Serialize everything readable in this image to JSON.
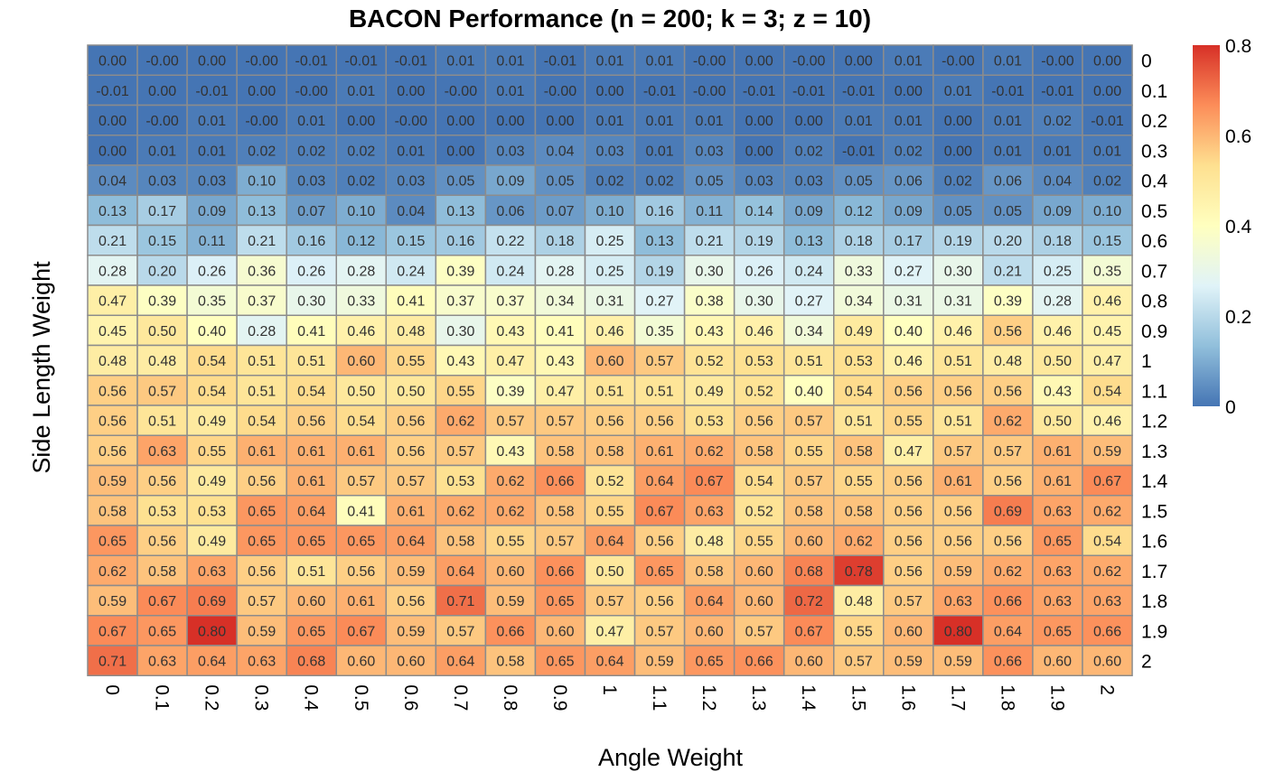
{
  "chart_data": {
    "type": "heatmap",
    "title": "BACON Performance (n = 200; k = 3; z = 10)",
    "xlabel": "Angle Weight",
    "ylabel": "Side Length Weight",
    "x": [
      "0",
      "0.1",
      "0.2",
      "0.3",
      "0.4",
      "0.5",
      "0.6",
      "0.7",
      "0.8",
      "0.9",
      "1",
      "1.1",
      "1.2",
      "1.3",
      "1.4",
      "1.5",
      "1.6",
      "1.7",
      "1.8",
      "1.9",
      "2"
    ],
    "y": [
      "0",
      "0.1",
      "0.2",
      "0.3",
      "0.4",
      "0.5",
      "0.6",
      "0.7",
      "0.8",
      "0.9",
      "1",
      "1.1",
      "1.2",
      "1.3",
      "1.4",
      "1.5",
      "1.6",
      "1.7",
      "1.8",
      "1.9",
      "2"
    ],
    "values": [
      [
        "0.00",
        "-0.00",
        "0.00",
        "-0.00",
        "-0.01",
        "-0.01",
        "-0.01",
        "0.01",
        "0.01",
        "-0.01",
        "0.01",
        "0.01",
        "-0.00",
        "0.00",
        "-0.00",
        "0.00",
        "0.01",
        "-0.00",
        "0.01",
        "-0.00",
        "0.00"
      ],
      [
        "-0.01",
        "0.00",
        "-0.01",
        "0.00",
        "-0.00",
        "0.01",
        "0.00",
        "-0.00",
        "0.01",
        "-0.00",
        "0.00",
        "-0.01",
        "-0.00",
        "-0.01",
        "-0.01",
        "-0.01",
        "0.00",
        "0.01",
        "-0.01",
        "-0.01",
        "0.00"
      ],
      [
        "0.00",
        "-0.00",
        "0.01",
        "-0.00",
        "0.01",
        "0.00",
        "-0.00",
        "0.00",
        "0.00",
        "0.00",
        "0.01",
        "0.01",
        "0.01",
        "0.00",
        "0.00",
        "0.01",
        "0.01",
        "0.00",
        "0.01",
        "0.02",
        "-0.01"
      ],
      [
        "0.00",
        "0.01",
        "0.01",
        "0.02",
        "0.02",
        "0.02",
        "0.01",
        "0.00",
        "0.03",
        "0.04",
        "0.03",
        "0.01",
        "0.03",
        "0.00",
        "0.02",
        "-0.01",
        "0.02",
        "0.00",
        "0.01",
        "0.01",
        "0.01"
      ],
      [
        "0.04",
        "0.03",
        "0.03",
        "0.10",
        "0.03",
        "0.02",
        "0.03",
        "0.05",
        "0.09",
        "0.05",
        "0.02",
        "0.02",
        "0.05",
        "0.03",
        "0.03",
        "0.05",
        "0.06",
        "0.02",
        "0.06",
        "0.04",
        "0.02"
      ],
      [
        "0.13",
        "0.17",
        "0.09",
        "0.13",
        "0.07",
        "0.10",
        "0.04",
        "0.13",
        "0.06",
        "0.07",
        "0.10",
        "0.16",
        "0.11",
        "0.14",
        "0.09",
        "0.12",
        "0.09",
        "0.05",
        "0.05",
        "0.09",
        "0.10"
      ],
      [
        "0.21",
        "0.15",
        "0.11",
        "0.21",
        "0.16",
        "0.12",
        "0.15",
        "0.16",
        "0.22",
        "0.18",
        "0.25",
        "0.13",
        "0.21",
        "0.19",
        "0.13",
        "0.18",
        "0.17",
        "0.19",
        "0.20",
        "0.18",
        "0.15"
      ],
      [
        "0.28",
        "0.20",
        "0.26",
        "0.36",
        "0.26",
        "0.28",
        "0.24",
        "0.39",
        "0.24",
        "0.28",
        "0.25",
        "0.19",
        "0.30",
        "0.26",
        "0.24",
        "0.33",
        "0.27",
        "0.30",
        "0.21",
        "0.25",
        "0.35"
      ],
      [
        "0.47",
        "0.39",
        "0.35",
        "0.37",
        "0.30",
        "0.33",
        "0.41",
        "0.37",
        "0.37",
        "0.34",
        "0.31",
        "0.27",
        "0.38",
        "0.30",
        "0.27",
        "0.34",
        "0.31",
        "0.31",
        "0.39",
        "0.28",
        "0.46"
      ],
      [
        "0.45",
        "0.50",
        "0.40",
        "0.28",
        "0.41",
        "0.46",
        "0.48",
        "0.30",
        "0.43",
        "0.41",
        "0.46",
        "0.35",
        "0.43",
        "0.46",
        "0.34",
        "0.49",
        "0.40",
        "0.46",
        "0.56",
        "0.46",
        "0.45"
      ],
      [
        "0.48",
        "0.48",
        "0.54",
        "0.51",
        "0.51",
        "0.60",
        "0.55",
        "0.43",
        "0.47",
        "0.43",
        "0.60",
        "0.57",
        "0.52",
        "0.53",
        "0.51",
        "0.53",
        "0.46",
        "0.51",
        "0.48",
        "0.50",
        "0.47"
      ],
      [
        "0.56",
        "0.57",
        "0.54",
        "0.51",
        "0.54",
        "0.50",
        "0.50",
        "0.55",
        "0.39",
        "0.47",
        "0.51",
        "0.51",
        "0.49",
        "0.52",
        "0.40",
        "0.54",
        "0.56",
        "0.56",
        "0.56",
        "0.43",
        "0.54"
      ],
      [
        "0.56",
        "0.51",
        "0.49",
        "0.54",
        "0.56",
        "0.54",
        "0.56",
        "0.62",
        "0.57",
        "0.57",
        "0.56",
        "0.56",
        "0.53",
        "0.56",
        "0.57",
        "0.51",
        "0.55",
        "0.51",
        "0.62",
        "0.50",
        "0.46"
      ],
      [
        "0.56",
        "0.63",
        "0.55",
        "0.61",
        "0.61",
        "0.61",
        "0.56",
        "0.57",
        "0.43",
        "0.58",
        "0.58",
        "0.61",
        "0.62",
        "0.58",
        "0.55",
        "0.58",
        "0.47",
        "0.57",
        "0.57",
        "0.61",
        "0.59"
      ],
      [
        "0.59",
        "0.56",
        "0.49",
        "0.56",
        "0.61",
        "0.57",
        "0.57",
        "0.53",
        "0.62",
        "0.66",
        "0.52",
        "0.64",
        "0.67",
        "0.54",
        "0.57",
        "0.55",
        "0.56",
        "0.61",
        "0.56",
        "0.61",
        "0.67"
      ],
      [
        "0.58",
        "0.53",
        "0.53",
        "0.65",
        "0.64",
        "0.41",
        "0.61",
        "0.62",
        "0.62",
        "0.58",
        "0.55",
        "0.67",
        "0.63",
        "0.52",
        "0.58",
        "0.58",
        "0.56",
        "0.56",
        "0.69",
        "0.63",
        "0.62"
      ],
      [
        "0.65",
        "0.56",
        "0.49",
        "0.65",
        "0.65",
        "0.65",
        "0.64",
        "0.58",
        "0.55",
        "0.57",
        "0.64",
        "0.56",
        "0.48",
        "0.55",
        "0.60",
        "0.62",
        "0.56",
        "0.56",
        "0.56",
        "0.65",
        "0.54"
      ],
      [
        "0.62",
        "0.58",
        "0.63",
        "0.56",
        "0.51",
        "0.56",
        "0.59",
        "0.64",
        "0.60",
        "0.66",
        "0.50",
        "0.65",
        "0.58",
        "0.60",
        "0.68",
        "0.78",
        "0.56",
        "0.59",
        "0.62",
        "0.63",
        "0.62"
      ],
      [
        "0.59",
        "0.67",
        "0.69",
        "0.57",
        "0.60",
        "0.61",
        "0.56",
        "0.71",
        "0.59",
        "0.65",
        "0.57",
        "0.56",
        "0.64",
        "0.60",
        "0.72",
        "0.48",
        "0.57",
        "0.63",
        "0.66",
        "0.63",
        "0.63"
      ],
      [
        "0.67",
        "0.65",
        "0.80",
        "0.59",
        "0.65",
        "0.67",
        "0.59",
        "0.57",
        "0.66",
        "0.60",
        "0.47",
        "0.57",
        "0.60",
        "0.57",
        "0.67",
        "0.55",
        "0.60",
        "0.80",
        "0.64",
        "0.65",
        "0.66"
      ],
      [
        "0.71",
        "0.63",
        "0.64",
        "0.63",
        "0.68",
        "0.60",
        "0.60",
        "0.64",
        "0.58",
        "0.65",
        "0.64",
        "0.59",
        "0.65",
        "0.66",
        "0.60",
        "0.57",
        "0.59",
        "0.59",
        "0.66",
        "0.60",
        "0.60"
      ]
    ],
    "color_scale": {
      "min": 0,
      "max": 0.8,
      "stops": [
        "#4575b4",
        "#91bfdb",
        "#e0f3f8",
        "#ffffbf",
        "#fee090",
        "#fc8d59",
        "#d73027"
      ],
      "legend_ticks": [
        "0",
        "0.2",
        "0.4",
        "0.6",
        "0.8"
      ],
      "legend_placement": "right"
    },
    "cell_border_color": "#8c8c8c",
    "grid": false
  }
}
